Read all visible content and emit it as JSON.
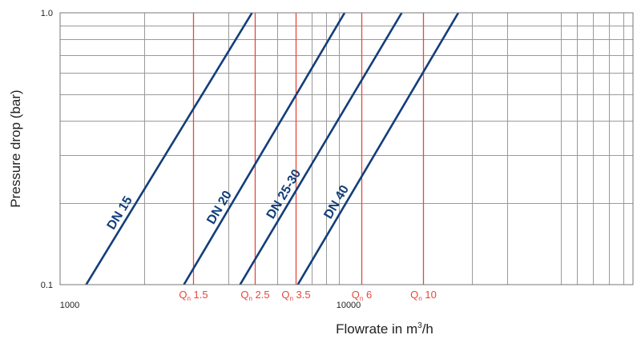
{
  "chart_data": {
    "type": "line",
    "title": "",
    "xlabel_prefix": "Flowrate in m",
    "xlabel_sup": "3",
    "xlabel_suffix": "/h",
    "ylabel": "Pressure drop (bar)",
    "x_scale": "log",
    "y_scale": "log",
    "xlim": [
      1000,
      50000
    ],
    "ylim": [
      0.1,
      1.0
    ],
    "grid": true,
    "x_tick_labels": [
      {
        "value": 1000,
        "label": "1000"
      },
      {
        "value": 10000,
        "label": "10000"
      }
    ],
    "y_tick_labels": [
      {
        "value": 0.1,
        "label": "0.1"
      },
      {
        "value": 1.0,
        "label": "1.0"
      }
    ],
    "x_gridlines": [
      2000,
      3000,
      4000,
      5000,
      6000,
      7000,
      8000,
      9000,
      10000,
      20000,
      30000,
      40000
    ],
    "y_gridlines": [
      0.2,
      0.3,
      0.4,
      0.5,
      0.6,
      0.7,
      0.8,
      0.9
    ],
    "series": [
      {
        "name": "DN 15",
        "x": [
          1240,
          4880
        ],
        "y": [
          0.1,
          1.0
        ],
        "color": "#123e7a"
      },
      {
        "name": "DN 20",
        "x": [
          2780,
          10480
        ],
        "y": [
          0.1,
          1.0
        ],
        "color": "#123e7a"
      },
      {
        "name": "DN 25-30",
        "x": [
          4420,
          16800
        ],
        "y": [
          0.1,
          1.0
        ],
        "color": "#123e7a"
      },
      {
        "name": "DN 40",
        "x": [
          7120,
          26800
        ],
        "y": [
          0.1,
          1.0
        ],
        "color": "#123e7a"
      }
    ],
    "reference_lines": {
      "color": "#e8473b",
      "items": [
        {
          "label_main": "Q",
          "label_sub": "n",
          "label_value": "1.5",
          "x": 3000
        },
        {
          "label_main": "Q",
          "label_sub": "n",
          "label_value": "2.5",
          "x": 5000
        },
        {
          "label_main": "Q",
          "label_sub": "n",
          "label_value": "3.5",
          "x": 7000
        },
        {
          "label_main": "Q",
          "label_sub": "n",
          "label_value": "6",
          "x": 12000
        },
        {
          "label_main": "Q",
          "label_sub": "n",
          "label_value": "10",
          "x": 20000
        }
      ]
    }
  }
}
